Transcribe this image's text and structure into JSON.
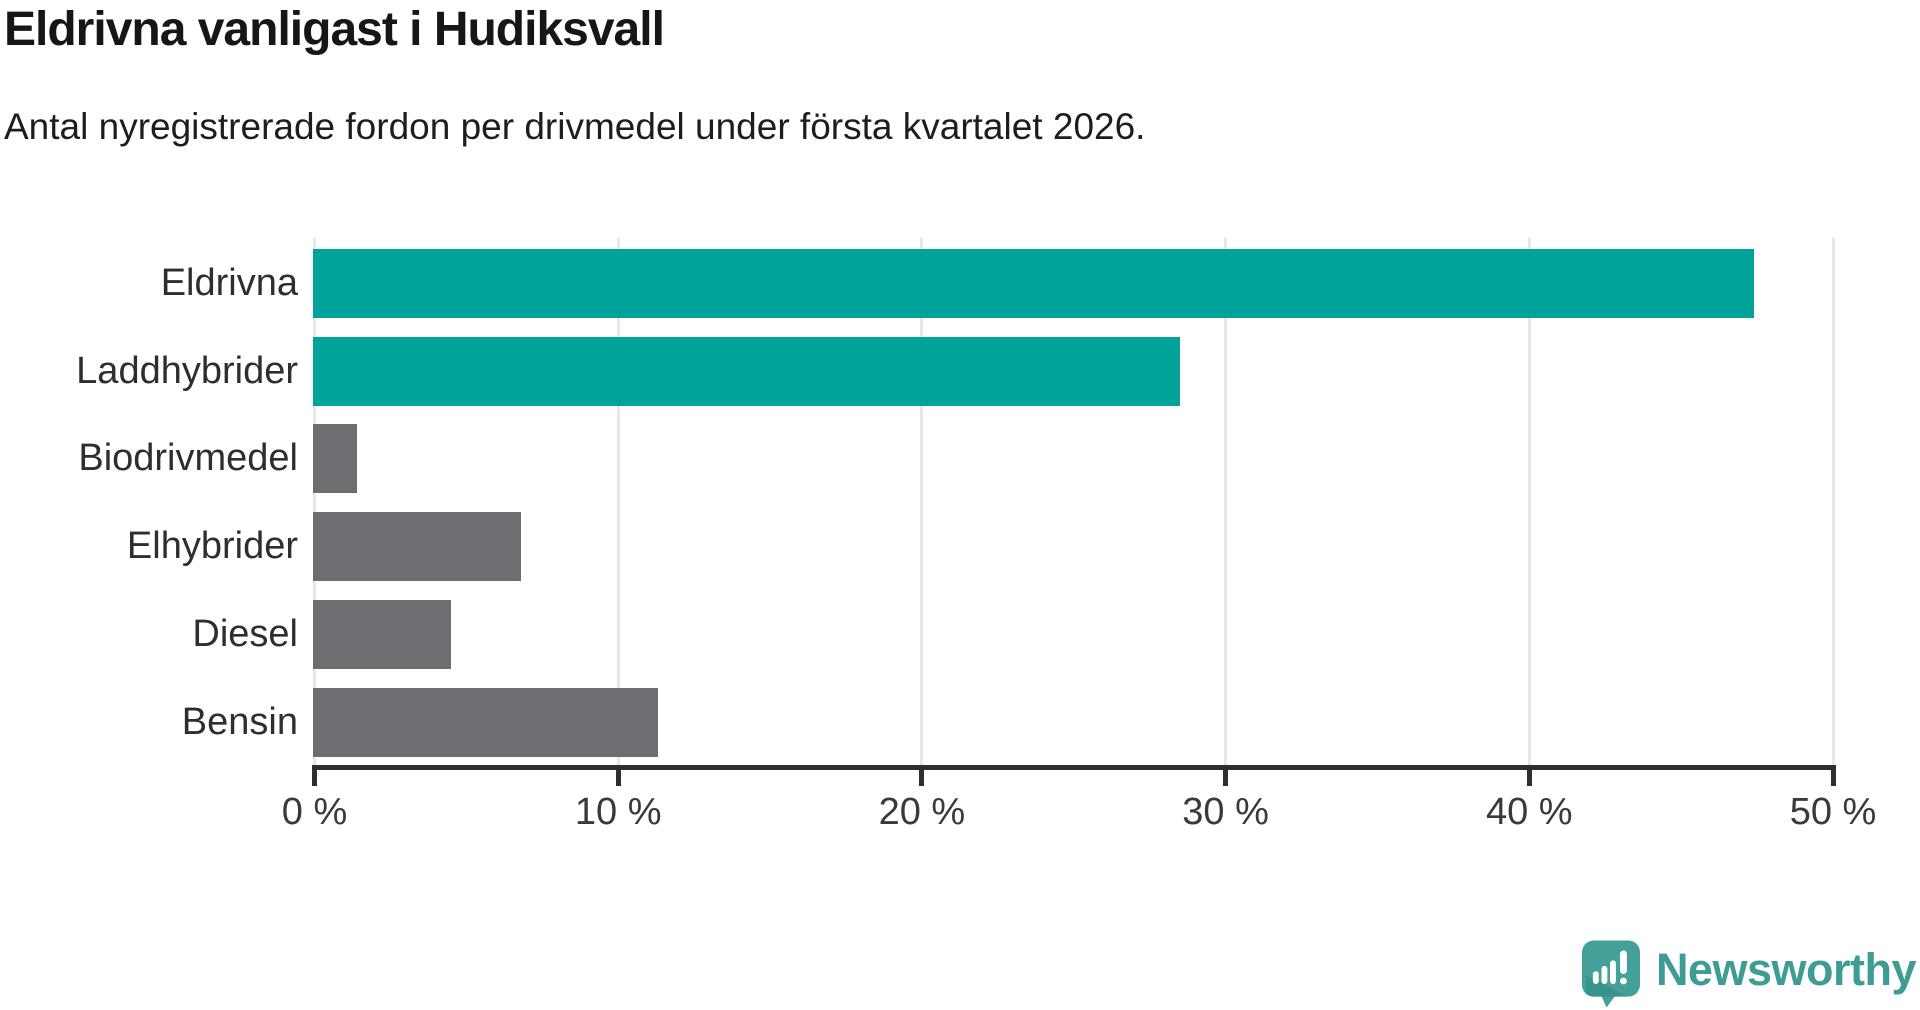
{
  "title": "Eldrivna vanligast i Hudiksvall",
  "subtitle": "Antal nyregistrerade fordon per drivmedel under första kvartalet 2026.",
  "branding": {
    "logo_text": "Newsworthy",
    "logo_color": "#3f9c95",
    "logo_bubble_color": "#43a19a",
    "logo_bubble_shadow_color": "#36948d"
  },
  "colors": {
    "highlight_bar": "#00a299",
    "default_bar": "#6d6d72",
    "axis": "#2e2e2e",
    "gridline": "#e8e8e8",
    "title_text": "#161613",
    "label_text": "#2e2e2e",
    "tick_text": "#3a3a3a",
    "background": "#ffffff"
  },
  "chart_data": {
    "type": "bar",
    "orientation": "horizontal",
    "title": "Eldrivna vanligast i Hudiksvall",
    "subtitle": "Antal nyregistrerade fordon per drivmedel under första kvartalet 2026.",
    "categories": [
      "Eldrivna",
      "Laddhybrider",
      "Biodrivmedel",
      "Elhybrider",
      "Diesel",
      "Bensin"
    ],
    "values": [
      47.4,
      28.5,
      1.4,
      6.8,
      4.5,
      11.3
    ],
    "unit": "%",
    "highlighted": [
      true,
      true,
      false,
      false,
      false,
      false
    ],
    "xlabel": "",
    "ylabel": "",
    "xlim": [
      0,
      50
    ],
    "xticks": [
      0,
      10,
      20,
      30,
      40,
      50
    ],
    "xtick_labels": [
      "0 %",
      "10 %",
      "20 %",
      "30 %",
      "40 %",
      "50 %"
    ],
    "grid": true,
    "legend": false
  }
}
